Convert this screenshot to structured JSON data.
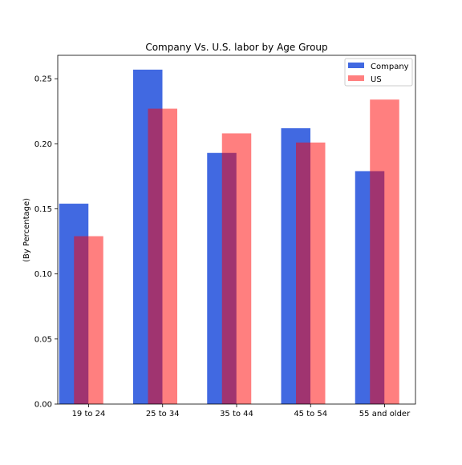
{
  "chart_data": {
    "type": "bar",
    "title": "Company Vs. U.S. labor by Age Group",
    "xlabel": "",
    "ylabel": "(By Percentage)",
    "categories": [
      "19 to 24",
      "25 to 34",
      "35 to 44",
      "45 to 54",
      "55 and older"
    ],
    "series": [
      {
        "name": "Company",
        "values": [
          0.154,
          0.257,
          0.193,
          0.212,
          0.179
        ],
        "color": "#4169E1",
        "opacity": 1
      },
      {
        "name": "US",
        "values": [
          0.129,
          0.227,
          0.208,
          0.201,
          0.234
        ],
        "color": "#FF0000",
        "opacity": 0.5
      }
    ],
    "ylim": [
      0,
      0.268
    ],
    "yticks": [
      "0.00",
      "0.05",
      "0.10",
      "0.15",
      "0.20",
      "0.25"
    ],
    "legend_position": "top-right",
    "grid": false
  }
}
